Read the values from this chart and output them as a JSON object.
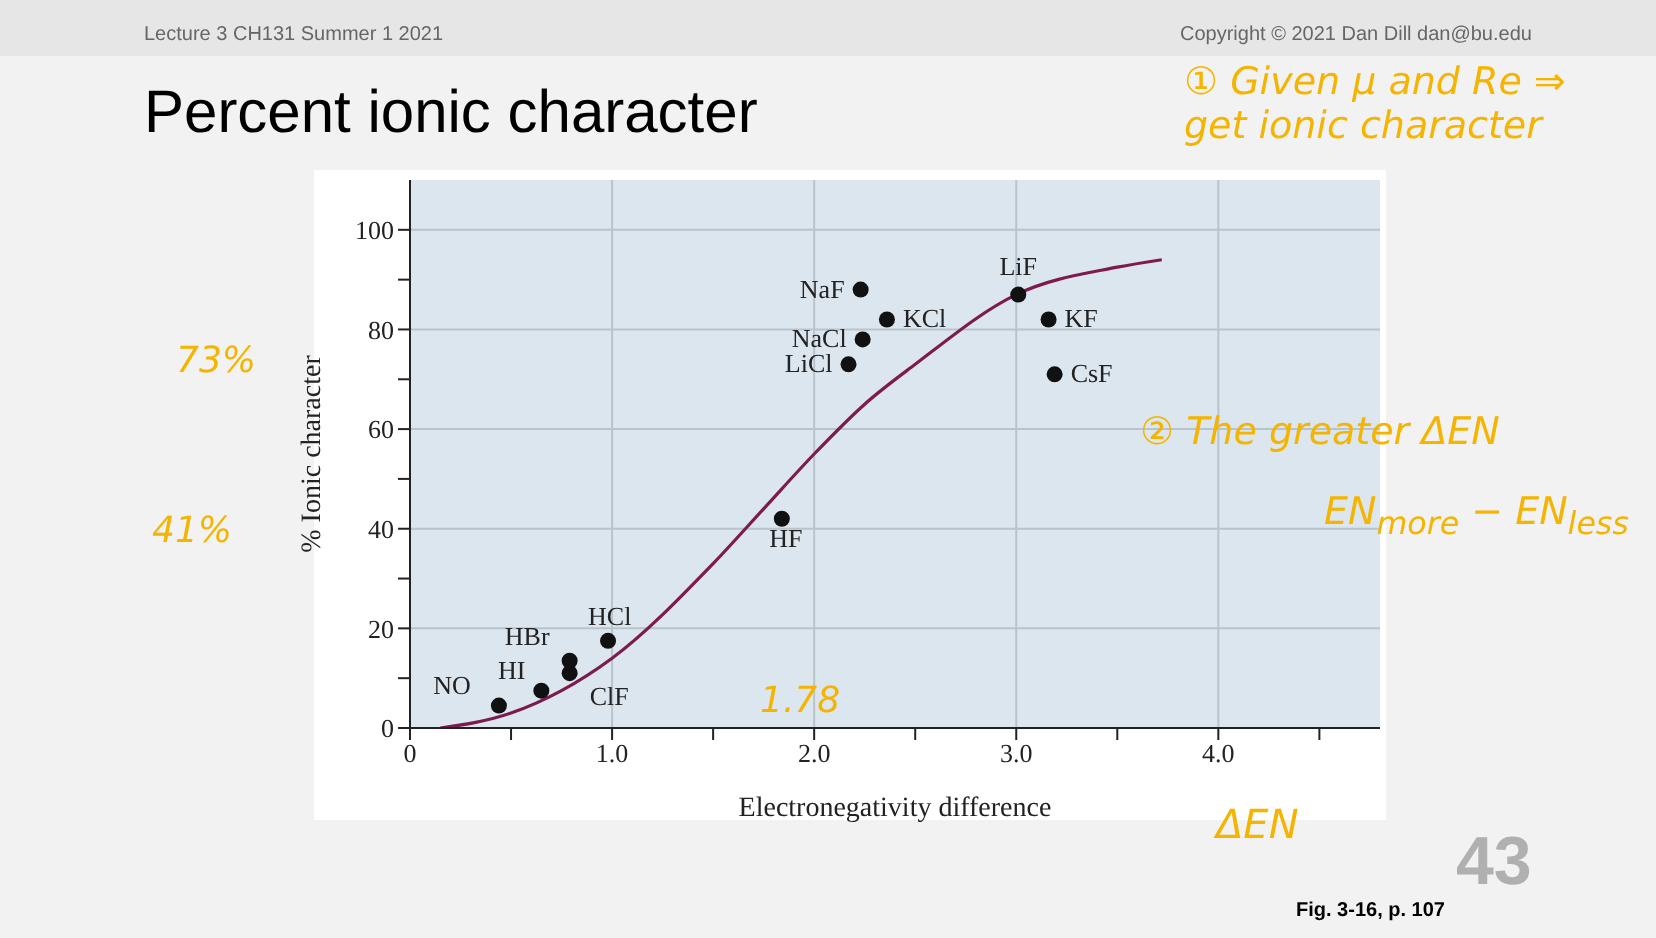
{
  "chart_data": {
    "type": "scatter",
    "title": "Percent ionic character",
    "xlabel": "Electronegativity difference",
    "ylabel": "% Ionic character",
    "xlim": [
      0,
      4.8
    ],
    "xticks": [
      0,
      {
        "value": 0.5,
        "label": null
      },
      {
        "value": 1,
        "label": "1.0"
      },
      {
        "value": 1.5,
        "label": null
      },
      {
        "value": 2,
        "label": "2.0"
      },
      {
        "value": 2.5,
        "label": null
      },
      {
        "value": 3,
        "label": "3.0"
      },
      {
        "value": 3.5,
        "label": null
      },
      {
        "value": 4,
        "label": "4.0"
      },
      {
        "value": 4.5,
        "label": null
      }
    ],
    "ylim": [
      0,
      110
    ],
    "yticks": [
      0,
      {
        "value": 10,
        "label": null
      },
      20,
      {
        "value": 30,
        "label": null
      },
      40,
      {
        "value": 50,
        "label": null
      },
      60,
      {
        "value": 70,
        "label": null
      },
      80,
      {
        "value": 90,
        "label": null
      },
      100
    ],
    "grid": true,
    "marker": "circle",
    "series": [
      {
        "color": "#111111",
        "x": [
          0.44,
          0.65,
          0.79,
          0.79,
          0.98,
          1.84,
          2.23,
          2.36,
          2.24,
          2.17,
          3.01,
          3.16,
          3.19
        ],
        "values": [
          4.5,
          7.5,
          13.5,
          11,
          17.5,
          42,
          88,
          82,
          78,
          73,
          87,
          82,
          71
        ],
        "value_labels": [
          "NO",
          "HI",
          "HBr",
          "ClF",
          "HCl",
          "HF",
          "NaF",
          "KCl",
          "NaCl",
          "LiCl",
          "LiF",
          "KF",
          "CsF"
        ]
      },
      {
        "type": "line",
        "color": "#7d1b4e",
        "marker": "none",
        "x": [
          0.15,
          0.5,
          1.0,
          1.5,
          1.75,
          2.0,
          2.25,
          2.5,
          3.0,
          3.5,
          3.72
        ],
        "values": [
          0,
          3,
          14,
          33,
          44,
          55,
          65,
          73,
          87,
          92.5,
          94
        ]
      }
    ],
    "annotations": [
      "Lecture 3 CH131 Summer 1 2021",
      "Copyright © 2021 Dan Dill dan@bu.edu",
      "43",
      "Fig. 3-16, p. 107",
      "① Given μ and Re ⇒ get ionic character",
      "② The greater ΔEN",
      "EN$_{more}$ − EN$_{less}$",
      "73%",
      "41%",
      "1.78",
      "ΔEN"
    ]
  }
}
